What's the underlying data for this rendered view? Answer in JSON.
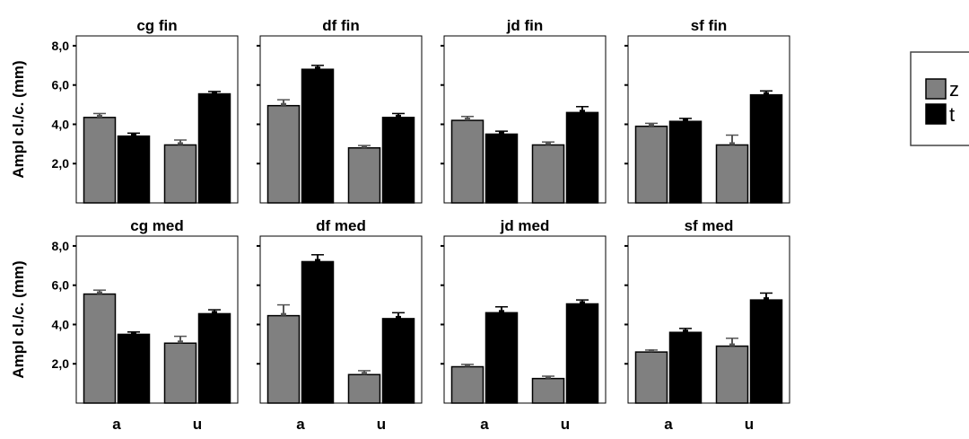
{
  "chart_data": {
    "type": "bar",
    "ylabel": "Ampl cl./c. (mm)",
    "categories": [
      "a",
      "u"
    ],
    "ylim": [
      0,
      8.5
    ],
    "yticks": [
      {
        "value": 2,
        "label": "2,0"
      },
      {
        "value": 4,
        "label": "4,0"
      },
      {
        "value": 6,
        "label": "6,0"
      },
      {
        "value": 8,
        "label": "8,0"
      }
    ],
    "colors": {
      "z": "#808080",
      "t": "#000000"
    },
    "legend": {
      "position": "top-right",
      "entries": [
        "z",
        "t"
      ]
    },
    "panels": [
      {
        "title": "cg fin",
        "series": [
          {
            "name": "z",
            "values": [
              4.35,
              2.95
            ],
            "errors": [
              0.2,
              0.25
            ]
          },
          {
            "name": "t",
            "values": [
              3.4,
              5.55
            ],
            "errors": [
              0.15,
              0.12
            ]
          }
        ]
      },
      {
        "title": "df fin",
        "series": [
          {
            "name": "z",
            "values": [
              4.95,
              2.8
            ],
            "errors": [
              0.3,
              0.12
            ]
          },
          {
            "name": "t",
            "values": [
              6.8,
              4.35
            ],
            "errors": [
              0.2,
              0.2
            ]
          }
        ]
      },
      {
        "title": "jd fin",
        "series": [
          {
            "name": "z",
            "values": [
              4.2,
              2.95
            ],
            "errors": [
              0.2,
              0.15
            ]
          },
          {
            "name": "t",
            "values": [
              3.5,
              4.6
            ],
            "errors": [
              0.15,
              0.3
            ]
          }
        ]
      },
      {
        "title": "sf fin",
        "series": [
          {
            "name": "z",
            "values": [
              3.9,
              2.95
            ],
            "errors": [
              0.15,
              0.5
            ]
          },
          {
            "name": "t",
            "values": [
              4.15,
              5.5
            ],
            "errors": [
              0.15,
              0.2
            ]
          }
        ]
      },
      {
        "title": "cg med",
        "series": [
          {
            "name": "z",
            "values": [
              5.55,
              3.05
            ],
            "errors": [
              0.2,
              0.35
            ]
          },
          {
            "name": "t",
            "values": [
              3.5,
              4.55
            ],
            "errors": [
              0.12,
              0.2
            ]
          }
        ]
      },
      {
        "title": "df med",
        "series": [
          {
            "name": "z",
            "values": [
              4.45,
              1.45
            ],
            "errors": [
              0.55,
              0.2
            ]
          },
          {
            "name": "t",
            "values": [
              7.2,
              4.3
            ],
            "errors": [
              0.35,
              0.3
            ]
          }
        ]
      },
      {
        "title": "jd med",
        "series": [
          {
            "name": "z",
            "values": [
              1.85,
              1.25
            ],
            "errors": [
              0.12,
              0.12
            ]
          },
          {
            "name": "t",
            "values": [
              4.6,
              5.05
            ],
            "errors": [
              0.3,
              0.2
            ]
          }
        ]
      },
      {
        "title": "sf med",
        "series": [
          {
            "name": "z",
            "values": [
              2.6,
              2.9
            ],
            "errors": [
              0.1,
              0.4
            ]
          },
          {
            "name": "t",
            "values": [
              3.6,
              5.25
            ],
            "errors": [
              0.2,
              0.35
            ]
          }
        ]
      }
    ]
  }
}
